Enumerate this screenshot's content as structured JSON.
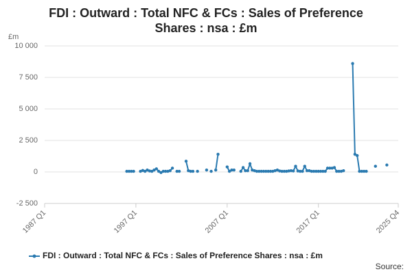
{
  "chart_data": {
    "type": "line",
    "title": "FDI : Outward : Total NFC & FCs : Sales of Preference Shares : nsa : £m",
    "y_unit": "£m",
    "source": "Source:",
    "x": [
      1996,
      1996.25,
      1996.5,
      1996.75,
      1997,
      1997.25,
      1997.5,
      1997.75,
      1998,
      1998.25,
      1998.5,
      1998.75,
      1999,
      1999.25,
      1999.5,
      1999.75,
      2000,
      2000.25,
      2000.5,
      2000.75,
      2001,
      2001.25,
      2001.5,
      2001.75,
      2002,
      2002.25,
      2002.5,
      2002.75,
      2003,
      2003.25,
      2003.5,
      2003.75,
      2004,
      2004.25,
      2004.5,
      2004.75,
      2005,
      2005.25,
      2005.5,
      2005.75,
      2006,
      2006.25,
      2006.5,
      2006.75,
      2007,
      2007.25,
      2007.5,
      2007.75,
      2008,
      2008.25,
      2008.5,
      2008.75,
      2009,
      2009.25,
      2009.5,
      2009.75,
      2010,
      2010.25,
      2010.5,
      2010.75,
      2011,
      2011.25,
      2011.5,
      2011.75,
      2012,
      2012.25,
      2012.5,
      2012.75,
      2013,
      2013.25,
      2013.5,
      2013.75,
      2014,
      2014.25,
      2014.5,
      2014.75,
      2015,
      2015.25,
      2015.5,
      2015.75,
      2016,
      2016.25,
      2016.5,
      2016.75,
      2017,
      2017.25,
      2017.5,
      2017.75,
      2018,
      2018.25,
      2018.5,
      2018.75,
      2019,
      2019.25,
      2019.5,
      2019.75,
      2020,
      2020.25,
      2020.5,
      2020.75,
      2021,
      2021.25,
      2021.5,
      2021.75,
      2022,
      2022.25,
      2022.5,
      2022.75,
      2023,
      2023.25,
      2023.5,
      2023.75,
      2024,
      2024.25,
      2024.5
    ],
    "series": [
      {
        "name": "FDI : Outward : Total NFC & FCs : Sales of Preference Shares : nsa : £m",
        "color": "#2a7ab0",
        "values": [
          50,
          50,
          50,
          50,
          null,
          null,
          50,
          120,
          50,
          150,
          80,
          50,
          150,
          250,
          50,
          -50,
          50,
          50,
          50,
          100,
          300,
          null,
          50,
          50,
          null,
          null,
          850,
          100,
          50,
          50,
          null,
          50,
          null,
          null,
          null,
          150,
          null,
          50,
          null,
          150,
          1400,
          null,
          null,
          null,
          400,
          50,
          150,
          150,
          null,
          null,
          50,
          350,
          100,
          100,
          650,
          150,
          100,
          50,
          50,
          50,
          50,
          50,
          50,
          50,
          50,
          100,
          150,
          80,
          50,
          50,
          50,
          80,
          100,
          80,
          450,
          80,
          50,
          50,
          450,
          100,
          100,
          50,
          50,
          50,
          50,
          50,
          50,
          50,
          300,
          300,
          300,
          350,
          50,
          50,
          50,
          100,
          null,
          null,
          null,
          8600,
          1400,
          1300,
          50,
          50,
          50,
          50,
          null,
          null,
          null,
          450,
          null,
          null,
          null,
          null,
          550
        ]
      }
    ],
    "xlim": [
      1987,
      2025.75
    ],
    "xticks": [
      {
        "value": 1987,
        "label": "1987 Q1"
      },
      {
        "value": 1997,
        "label": "1997 Q1"
      },
      {
        "value": 2007,
        "label": "2007 Q1"
      },
      {
        "value": 2017,
        "label": "2017 Q1"
      },
      {
        "value": 2025.75,
        "label": "2025 Q4"
      }
    ],
    "ylim": [
      -2500,
      10000
    ],
    "yticks": [
      {
        "value": -2500,
        "label": "-2 500"
      },
      0,
      {
        "value": 2500,
        "label": "2 500"
      },
      {
        "value": 5000,
        "label": "5 000"
      },
      {
        "value": 7500,
        "label": "7 500"
      },
      {
        "value": 10000,
        "label": "10 000"
      }
    ],
    "grid": true,
    "legend": "bottom"
  }
}
